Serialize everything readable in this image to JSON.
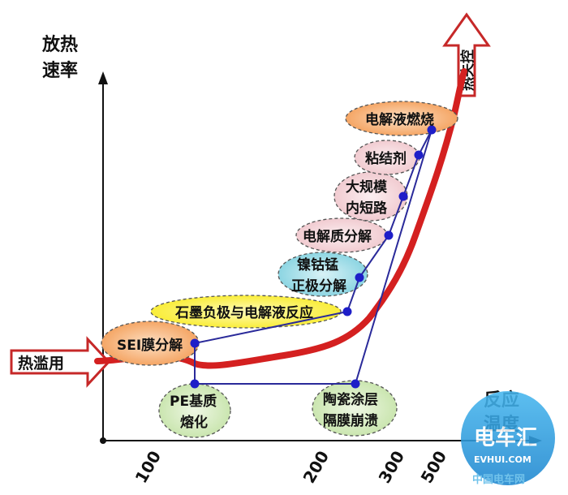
{
  "axes": {
    "y_label_line1": "放热",
    "y_label_line2": "速率",
    "x_label_line1": "反应",
    "x_label_line2": "温度"
  },
  "x_ticks": [
    "100",
    "200",
    "300",
    "500"
  ],
  "start_arrow": {
    "label": "热滥用"
  },
  "end_arrow": {
    "label": "热失控"
  },
  "events": {
    "sei": "SEI膜分解",
    "graphite": "石墨负极与电解液反应",
    "ncm_line1": "镍钴锰",
    "ncm_line2": "正极分解",
    "electrolyte_decomp": "电解质分解",
    "short_line1": "大规模",
    "short_line2": "内短路",
    "binder": "粘结剂",
    "electrolyte_burn": "电解液燃烧",
    "pe_line1": "PE基质",
    "pe_line2": "熔化",
    "ceramic_line1": "陶瓷涂层",
    "ceramic_line2": "隔膜崩溃"
  },
  "watermark": {
    "brand": "电车汇",
    "site": "EVHUI.COM",
    "subtext": "中国电车网"
  },
  "colors": {
    "curve_red": "#d42020",
    "connector_blue": "#2a2a9a",
    "dot_blue": "#1e1ec8",
    "orange_fill": "#f5a662",
    "yellow_fill": "#fff23c",
    "pink_fill": "#f3d2d6",
    "teal_fill": "#8fd6e2",
    "green_fill": "#cfe8b6",
    "watermark_blue": "#2a9fe0"
  }
}
